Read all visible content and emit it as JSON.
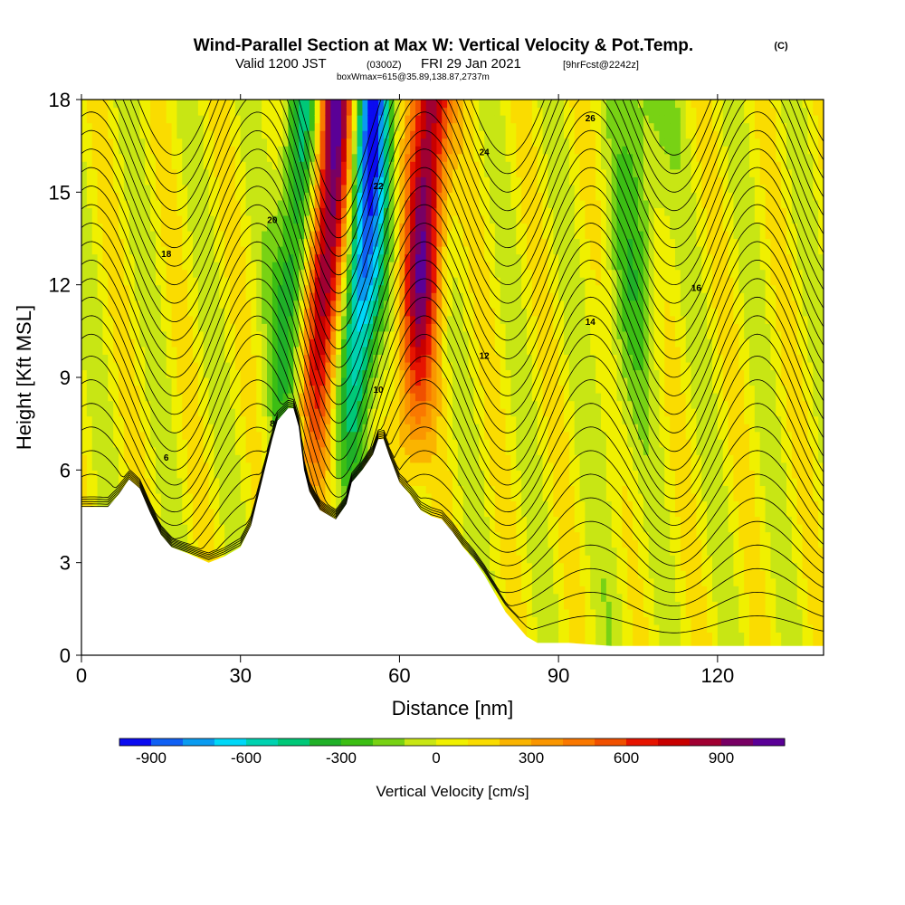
{
  "chart_data": {
    "type": "heatmap",
    "title": "Wind-Parallel Section at Max W: Vertical Velocity & Pot.Temp.",
    "title_mark": "(C)",
    "subtitle_parts": {
      "valid": "Valid 1200 JST",
      "utc": "(0300Z)",
      "date": "FRI 29 Jan 2021",
      "fcst": "[9hrFcst@2242z]"
    },
    "box_label": "boxWmax=615@35.89,138.87,2737m",
    "xlabel": "Distance [nm]",
    "ylabel": "Height [Kft MSL]",
    "xlim": [
      0,
      140
    ],
    "ylim": [
      0,
      18
    ],
    "x_ticks": [
      0,
      30,
      60,
      90,
      120
    ],
    "y_ticks": [
      0,
      3,
      6,
      9,
      12,
      15,
      18
    ],
    "colorbar": {
      "label": "Vertical Velocity [cm/s]",
      "range": [
        -1000,
        1100
      ],
      "ticks": [
        -900,
        -600,
        -300,
        0,
        300,
        600,
        900
      ],
      "colors": [
        "#0b0bf0",
        "#1060f4",
        "#0a9bf0",
        "#00d8f8",
        "#00d2b0",
        "#00c878",
        "#20b028",
        "#3cbe14",
        "#78d214",
        "#c8e614",
        "#f0f000",
        "#fadc00",
        "#fab400",
        "#fa9600",
        "#fa7800",
        "#f05000",
        "#e61400",
        "#c80000",
        "#a00032",
        "#780064",
        "#5a0096"
      ]
    },
    "terrain_kft": [
      [
        0,
        4.8
      ],
      [
        5,
        4.8
      ],
      [
        7,
        5.2
      ],
      [
        9,
        5.7
      ],
      [
        11,
        5.4
      ],
      [
        13,
        4.6
      ],
      [
        15,
        3.9
      ],
      [
        17,
        3.5
      ],
      [
        20,
        3.3
      ],
      [
        24,
        3.0
      ],
      [
        27,
        3.2
      ],
      [
        30,
        3.5
      ],
      [
        32,
        4.2
      ],
      [
        34,
        5.6
      ],
      [
        36,
        7.0
      ],
      [
        37,
        7.6
      ],
      [
        38,
        7.8
      ],
      [
        39,
        8.0
      ],
      [
        40,
        8.0
      ],
      [
        41,
        7.4
      ],
      [
        42,
        6.0
      ],
      [
        43,
        5.3
      ],
      [
        45,
        4.7
      ],
      [
        48,
        4.4
      ],
      [
        50,
        4.9
      ],
      [
        51,
        5.6
      ],
      [
        53,
        6.0
      ],
      [
        55,
        6.5
      ],
      [
        56,
        7.0
      ],
      [
        57,
        7.0
      ],
      [
        58,
        6.5
      ],
      [
        60,
        5.6
      ],
      [
        62,
        5.2
      ],
      [
        64,
        4.7
      ],
      [
        66,
        4.5
      ],
      [
        68,
        4.4
      ],
      [
        70,
        4.0
      ],
      [
        72,
        3.5
      ],
      [
        74,
        3.1
      ],
      [
        76,
        2.6
      ],
      [
        78,
        2.0
      ],
      [
        80,
        1.4
      ],
      [
        82,
        1.0
      ],
      [
        84,
        0.6
      ],
      [
        86,
        0.4
      ],
      [
        88,
        0.4
      ],
      [
        92,
        0.4
      ],
      [
        100,
        0.3
      ],
      [
        120,
        0.3
      ],
      [
        140,
        0.3
      ]
    ],
    "theta_label_values": [
      6,
      8,
      10,
      12,
      14,
      16,
      18,
      20,
      22,
      24,
      26
    ],
    "bands_cm_s": [
      {
        "x": 40,
        "w": -500
      },
      {
        "x": 46,
        "w": 1000
      },
      {
        "x": 53,
        "w": -950
      },
      {
        "x": 64,
        "w": 900
      },
      {
        "x": 104,
        "w": -250
      }
    ]
  }
}
